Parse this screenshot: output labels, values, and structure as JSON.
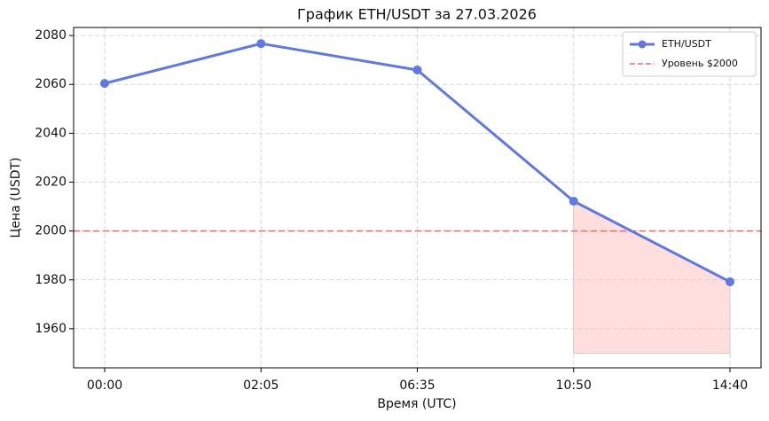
{
  "chart_data": {
    "type": "line",
    "title": "График ETH/USDT за 27.03.2026",
    "xlabel": "Время (UTC)",
    "ylabel": "Цена (USDT)",
    "categories": [
      "00:00",
      "02:05",
      "06:35",
      "10:50",
      "14:40"
    ],
    "series": [
      {
        "name": "ETH/USDT",
        "color": "#6078e0",
        "values": [
          2060.4,
          2076.7,
          2065.9,
          2012.2,
          1979.2
        ]
      }
    ],
    "hline": {
      "value": 2000,
      "label": "Уровень $2000",
      "color": "#ee6a6a"
    },
    "fill": {
      "from": "10:50",
      "baseline": 1950,
      "color": "#ffdede"
    },
    "ylim": [
      1944,
      2083.3
    ],
    "yticks": [
      1960,
      1980,
      2000,
      2020,
      2040,
      2060,
      2080
    ],
    "grid": true,
    "legend": "upper right"
  }
}
